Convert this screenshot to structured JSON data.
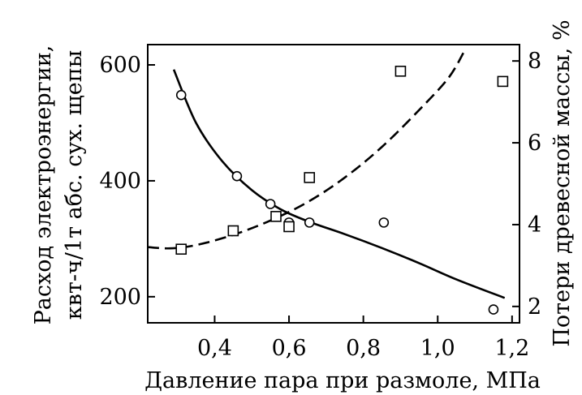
{
  "chart_data": {
    "type": "scatter",
    "xlabel": "Давление пара при размоле, МПа",
    "ylabel_left": [
      "Расход электроэнергии,",
      "квт-ч/1т абс. сух. щепы"
    ],
    "ylabel_right": "Потери древесной массы, %",
    "xlim": [
      0.22,
      1.22
    ],
    "ylim_left": [
      155,
      635
    ],
    "ylim_right": [
      1.6,
      8.4
    ],
    "x_ticks": [
      {
        "value": 0.4,
        "label": "0,4"
      },
      {
        "value": 0.6,
        "label": "0,6"
      },
      {
        "value": 0.8,
        "label": "0,8"
      },
      {
        "value": 1.0,
        "label": "1,0"
      },
      {
        "value": 1.2,
        "label": "1,2"
      }
    ],
    "y_left_ticks": [
      {
        "value": 200,
        "label": "200"
      },
      {
        "value": 400,
        "label": "400"
      },
      {
        "value": 600,
        "label": "600"
      }
    ],
    "y_right_ticks": [
      {
        "value": 2,
        "label": "2"
      },
      {
        "value": 4,
        "label": "4"
      },
      {
        "value": 6,
        "label": "6"
      },
      {
        "value": 8,
        "label": "8"
      }
    ],
    "series": [
      {
        "axis": "left",
        "marker": "circle",
        "points": [
          {
            "x": 0.31,
            "y": 548
          },
          {
            "x": 0.46,
            "y": 408
          },
          {
            "x": 0.55,
            "y": 360
          },
          {
            "x": 0.6,
            "y": 328
          },
          {
            "x": 0.655,
            "y": 328
          },
          {
            "x": 0.855,
            "y": 328
          },
          {
            "x": 1.15,
            "y": 178
          }
        ],
        "fit": {
          "style": "solid",
          "points": [
            {
              "x": 0.29,
              "y": 592
            },
            {
              "x": 0.35,
              "y": 500
            },
            {
              "x": 0.42,
              "y": 434
            },
            {
              "x": 0.5,
              "y": 384
            },
            {
              "x": 0.58,
              "y": 350
            },
            {
              "x": 0.66,
              "y": 328
            },
            {
              "x": 0.75,
              "y": 308
            },
            {
              "x": 0.85,
              "y": 284
            },
            {
              "x": 0.95,
              "y": 258
            },
            {
              "x": 1.05,
              "y": 230
            },
            {
              "x": 1.18,
              "y": 198
            }
          ]
        }
      },
      {
        "axis": "right",
        "marker": "square",
        "points": [
          {
            "x": 0.31,
            "y": 3.4
          },
          {
            "x": 0.45,
            "y": 3.85
          },
          {
            "x": 0.565,
            "y": 4.2
          },
          {
            "x": 0.6,
            "y": 3.95
          },
          {
            "x": 0.655,
            "y": 5.15
          },
          {
            "x": 0.9,
            "y": 7.75
          },
          {
            "x": 1.175,
            "y": 7.5
          }
        ],
        "fit": {
          "style": "dashed",
          "points": [
            {
              "x": 0.22,
              "y": 3.45
            },
            {
              "x": 0.28,
              "y": 3.42
            },
            {
              "x": 0.35,
              "y": 3.5
            },
            {
              "x": 0.45,
              "y": 3.75
            },
            {
              "x": 0.55,
              "y": 4.1
            },
            {
              "x": 0.65,
              "y": 4.55
            },
            {
              "x": 0.75,
              "y": 5.15
            },
            {
              "x": 0.85,
              "y": 5.9
            },
            {
              "x": 0.95,
              "y": 6.8
            },
            {
              "x": 1.03,
              "y": 7.6
            },
            {
              "x": 1.075,
              "y": 8.3
            }
          ]
        }
      }
    ]
  }
}
